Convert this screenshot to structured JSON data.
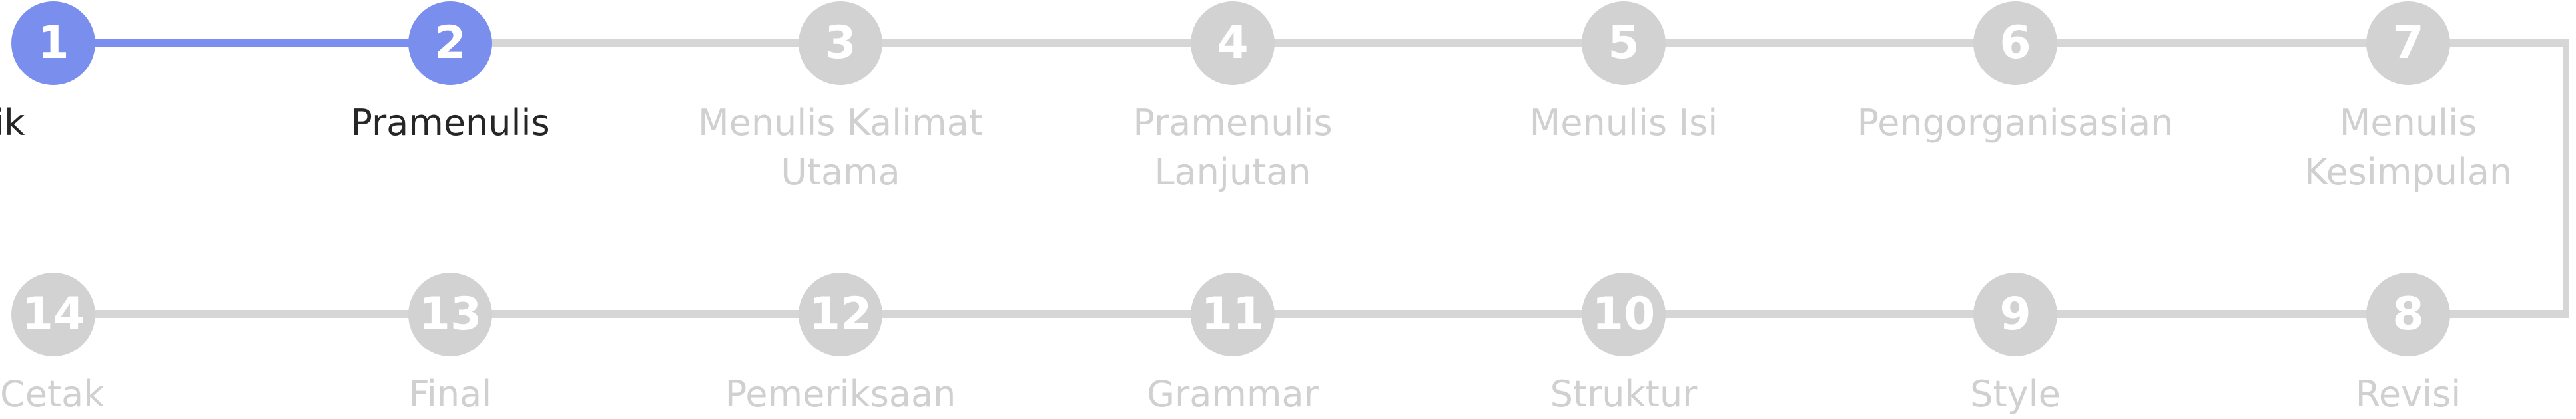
{
  "stepper": {
    "colors": {
      "active": "#7a8eee",
      "inactive": "#d2d2d2",
      "label_active": "#262626",
      "label_inactive": "#d0d0d0"
    },
    "steps": [
      {
        "number": "1",
        "label": "Topik",
        "state": "completed"
      },
      {
        "number": "2",
        "label": "Pramenulis",
        "state": "current"
      },
      {
        "number": "3",
        "label": "Menulis Kalimat\nUtama",
        "state": "upcoming"
      },
      {
        "number": "4",
        "label": "Pramenulis\nLanjutan",
        "state": "upcoming"
      },
      {
        "number": "5",
        "label": "Menulis Isi",
        "state": "upcoming"
      },
      {
        "number": "6",
        "label": "Pengorganisasian",
        "state": "upcoming"
      },
      {
        "number": "7",
        "label": "Menulis\nKesimpulan",
        "state": "upcoming"
      },
      {
        "number": "8",
        "label": "Revisi",
        "state": "upcoming"
      },
      {
        "number": "9",
        "label": "Style",
        "state": "upcoming"
      },
      {
        "number": "10",
        "label": "Struktur",
        "state": "upcoming"
      },
      {
        "number": "11",
        "label": "Grammar",
        "state": "upcoming"
      },
      {
        "number": "12",
        "label": "Pemeriksaan",
        "state": "upcoming"
      },
      {
        "number": "13",
        "label": "Final",
        "state": "upcoming"
      },
      {
        "number": "14",
        "label": "Cetak",
        "state": "upcoming"
      }
    ]
  }
}
